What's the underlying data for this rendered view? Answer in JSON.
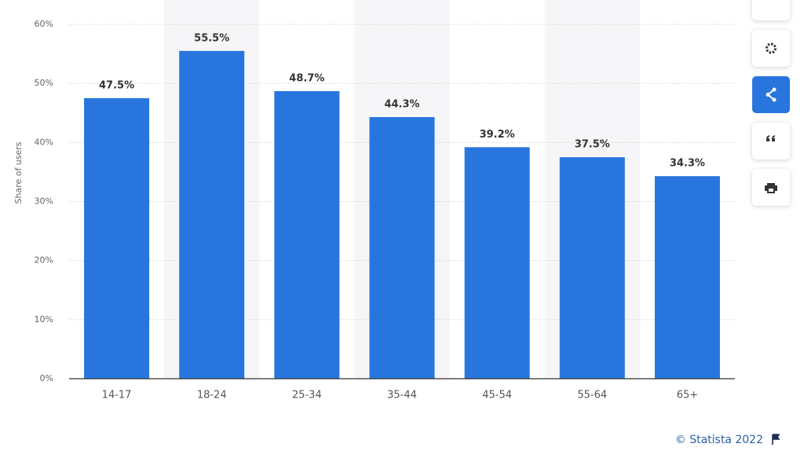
{
  "chart_data": {
    "type": "bar",
    "y_label": "Share of users",
    "categories": [
      "14-17",
      "18-24",
      "25-34",
      "35-44",
      "45-54",
      "55-64",
      "65+"
    ],
    "values": [
      47.5,
      55.5,
      48.7,
      44.3,
      39.2,
      37.5,
      34.3
    ],
    "value_labels": [
      "47.5%",
      "55.5%",
      "48.7%",
      "44.3%",
      "39.2%",
      "37.5%",
      "34.3%"
    ],
    "color": "#2876dd",
    "ylim": [
      0,
      60
    ],
    "yticks": [
      {
        "value": 0,
        "label": "0%"
      },
      {
        "value": 10,
        "label": "10%"
      },
      {
        "value": 20,
        "label": "20%"
      },
      {
        "value": 30,
        "label": "30%"
      },
      {
        "value": 40,
        "label": "40%"
      },
      {
        "value": 50,
        "label": "50%"
      },
      {
        "value": 60,
        "label": "60%"
      }
    ],
    "grid": true,
    "credit": "© Statista 2022"
  }
}
